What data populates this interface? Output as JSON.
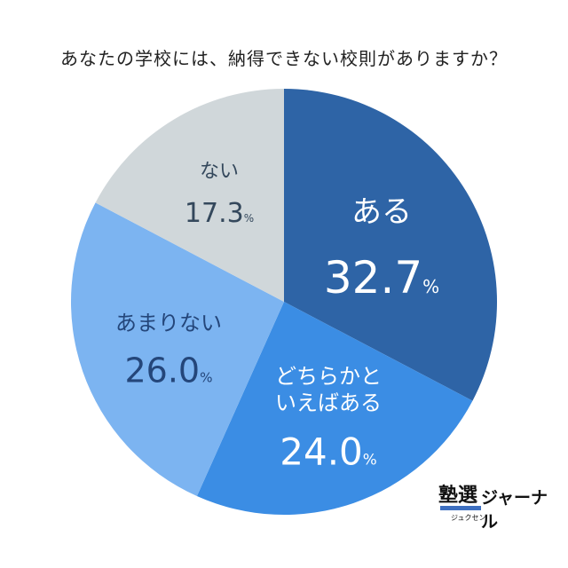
{
  "chart_data": {
    "type": "pie",
    "title": "あなたの学校には、納得できない校則がありますか？",
    "start": "top",
    "direction": "clockwise",
    "slices": [
      {
        "label": [
          "ある"
        ],
        "value": 32.7,
        "color": "#2e64a6",
        "text_color": "#ffffff"
      },
      {
        "label": [
          "どちらかと",
          "いえばある"
        ],
        "value": 24.0,
        "color": "#3b8de4",
        "text_color": "#ffffff"
      },
      {
        "label": [
          "あまりない"
        ],
        "value": 26.0,
        "color": "#7cb4f1",
        "text_color": "#24467a"
      },
      {
        "label": [
          "ない"
        ],
        "value": 17.3,
        "color": "#d0d7da",
        "text_color": "#34485c"
      }
    ],
    "unit": "%"
  },
  "logo": {
    "main": "塾選",
    "sub": "ジャーナル",
    "reading": "ジュクセン"
  }
}
